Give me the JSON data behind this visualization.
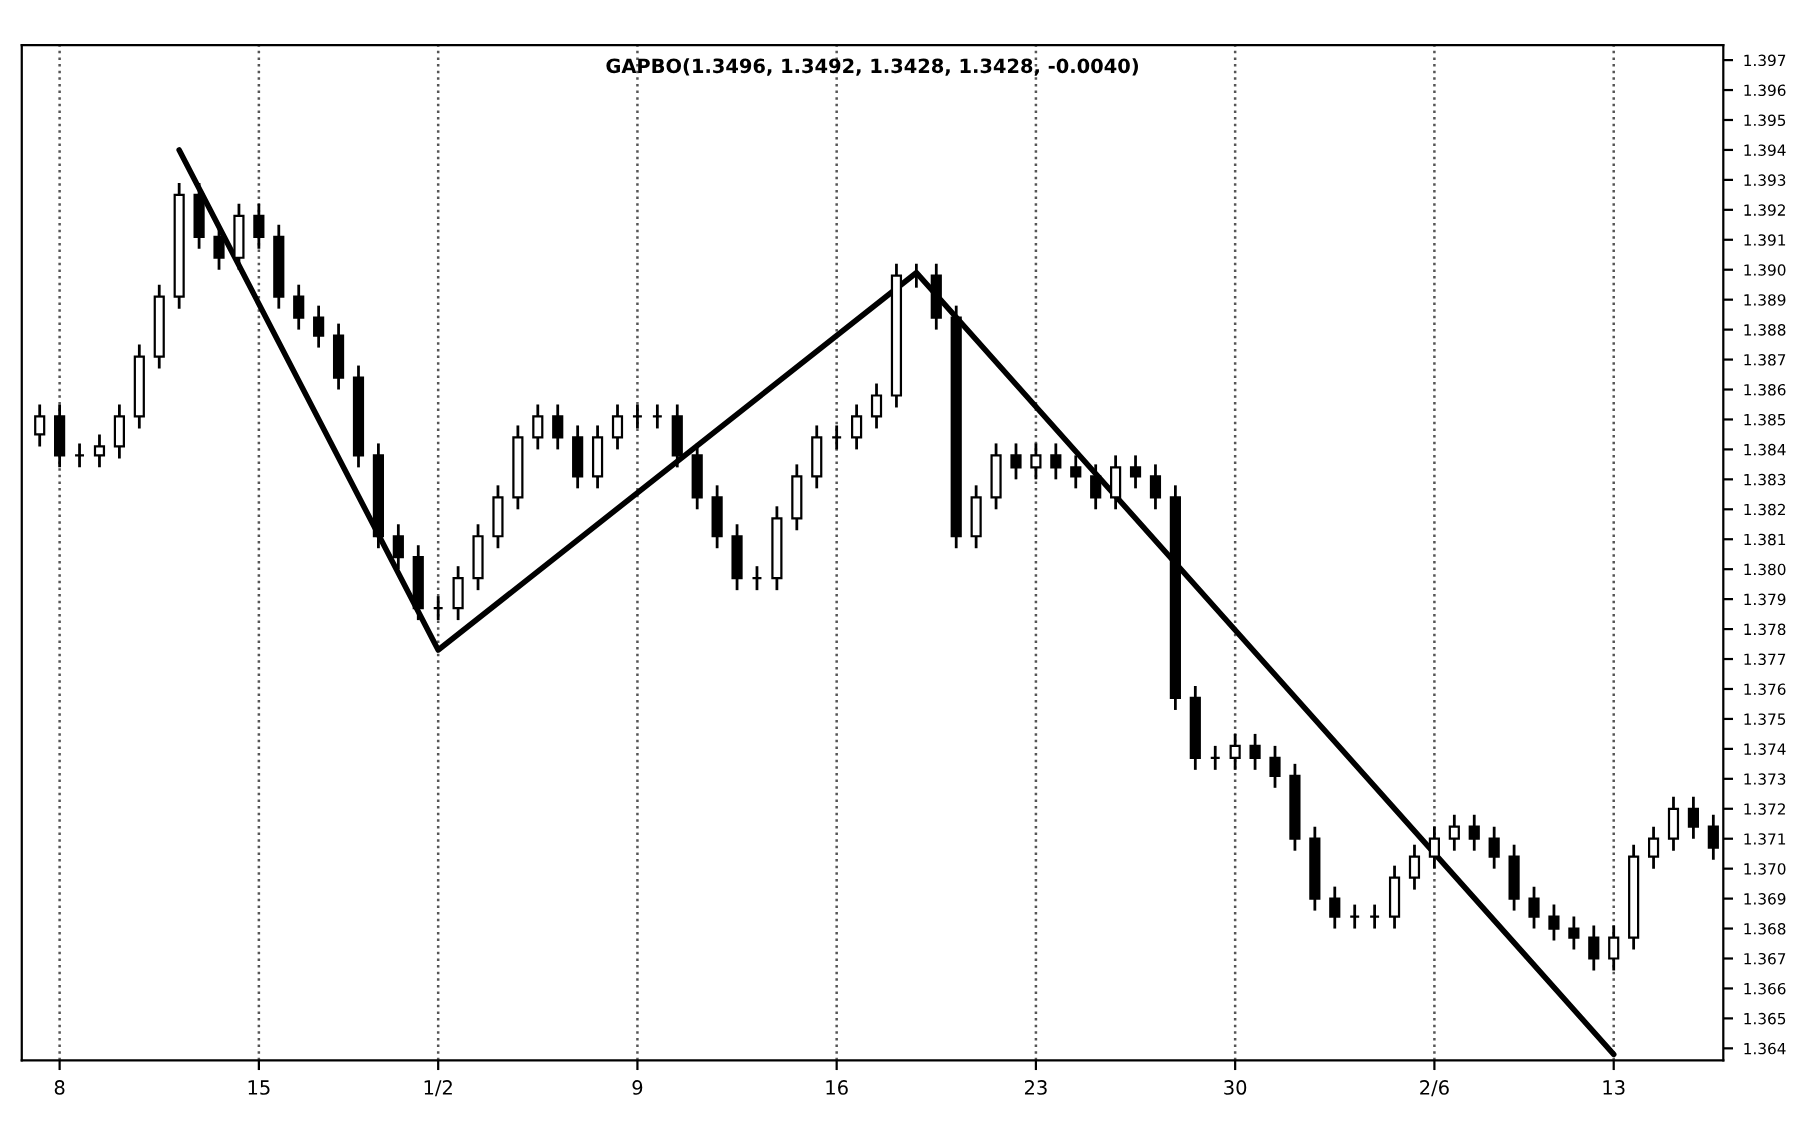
{
  "chart_data": {
    "type": "candlestick",
    "title": "GAPBO(1.3496, 1.3492, 1.3428, 1.3428, -0.0040)",
    "categories": [
      null,
      "8",
      null,
      null,
      null,
      null,
      null,
      null,
      null,
      null,
      null,
      "15",
      null,
      null,
      null,
      null,
      null,
      null,
      null,
      null,
      "1/2",
      null,
      null,
      null,
      null,
      null,
      null,
      null,
      null,
      null,
      "9",
      null,
      null,
      null,
      null,
      null,
      null,
      null,
      null,
      null,
      "16",
      null,
      null,
      null,
      null,
      null,
      null,
      null,
      null,
      null,
      "23",
      null,
      null,
      null,
      null,
      null,
      null,
      null,
      null,
      null,
      "30",
      null,
      null,
      null,
      null,
      null,
      null,
      null,
      null,
      null,
      "2/6",
      null,
      null,
      null,
      null,
      null,
      null,
      null,
      null,
      "13",
      null,
      null,
      null,
      null,
      null
    ],
    "ohlc": [
      [
        1.3845,
        1.3855,
        1.3841,
        1.3851
      ],
      [
        1.3851,
        1.3855,
        1.3834,
        1.3838
      ],
      [
        1.3838,
        1.3842,
        1.3834,
        1.3838
      ],
      [
        1.3838,
        1.3845,
        1.3834,
        1.3841
      ],
      [
        1.3841,
        1.3855,
        1.3837,
        1.3851
      ],
      [
        1.3851,
        1.3875,
        1.3847,
        1.3871
      ],
      [
        1.3871,
        1.3895,
        1.3867,
        1.3891
      ],
      [
        1.3891,
        1.3929,
        1.3887,
        1.3925
      ],
      [
        1.3925,
        1.3929,
        1.3907,
        1.3911
      ],
      [
        1.3911,
        1.3915,
        1.39,
        1.3904
      ],
      [
        1.3904,
        1.3922,
        1.39,
        1.3918
      ],
      [
        1.3918,
        1.3922,
        1.3907,
        1.3911
      ],
      [
        1.3911,
        1.3915,
        1.3887,
        1.3891
      ],
      [
        1.3891,
        1.3895,
        1.388,
        1.3884
      ],
      [
        1.3884,
        1.3888,
        1.3874,
        1.3878
      ],
      [
        1.3878,
        1.3882,
        1.386,
        1.3864
      ],
      [
        1.3864,
        1.3868,
        1.3834,
        1.3838
      ],
      [
        1.3838,
        1.3842,
        1.3807,
        1.3811
      ],
      [
        1.3811,
        1.3815,
        1.38,
        1.3804
      ],
      [
        1.3804,
        1.3808,
        1.3783,
        1.3787
      ],
      [
        1.3787,
        1.3791,
        1.3783,
        1.3787
      ],
      [
        1.3787,
        1.3801,
        1.3783,
        1.3797
      ],
      [
        1.3797,
        1.3815,
        1.3793,
        1.3811
      ],
      [
        1.3811,
        1.3828,
        1.3807,
        1.3824
      ],
      [
        1.3824,
        1.3848,
        1.382,
        1.3844
      ],
      [
        1.3844,
        1.3855,
        1.384,
        1.3851
      ],
      [
        1.3851,
        1.3855,
        1.384,
        1.3844
      ],
      [
        1.3844,
        1.3848,
        1.3827,
        1.3831
      ],
      [
        1.3831,
        1.3848,
        1.3827,
        1.3844
      ],
      [
        1.3844,
        1.3855,
        1.384,
        1.3851
      ],
      [
        1.3851,
        1.3855,
        1.3847,
        1.3851
      ],
      [
        1.3851,
        1.3855,
        1.3847,
        1.3851
      ],
      [
        1.3851,
        1.3855,
        1.3834,
        1.3838
      ],
      [
        1.3838,
        1.3842,
        1.382,
        1.3824
      ],
      [
        1.3824,
        1.3828,
        1.3807,
        1.3811
      ],
      [
        1.3811,
        1.3815,
        1.3793,
        1.3797
      ],
      [
        1.3797,
        1.3801,
        1.3793,
        1.3797
      ],
      [
        1.3797,
        1.3821,
        1.3793,
        1.3817
      ],
      [
        1.3817,
        1.3835,
        1.3813,
        1.3831
      ],
      [
        1.3831,
        1.3848,
        1.3827,
        1.3844
      ],
      [
        1.3844,
        1.3848,
        1.384,
        1.3844
      ],
      [
        1.3844,
        1.3855,
        1.384,
        1.3851
      ],
      [
        1.3851,
        1.3862,
        1.3847,
        1.3858
      ],
      [
        1.3858,
        1.3902,
        1.3854,
        1.3898
      ],
      [
        1.3898,
        1.3902,
        1.3894,
        1.3898
      ],
      [
        1.3898,
        1.3902,
        1.388,
        1.3884
      ],
      [
        1.3884,
        1.3888,
        1.3807,
        1.3811
      ],
      [
        1.3811,
        1.3828,
        1.3807,
        1.3824
      ],
      [
        1.3824,
        1.3842,
        1.382,
        1.3838
      ],
      [
        1.3838,
        1.3842,
        1.383,
        1.3834
      ],
      [
        1.3834,
        1.3842,
        1.383,
        1.3838
      ],
      [
        1.3838,
        1.3842,
        1.383,
        1.3834
      ],
      [
        1.3834,
        1.3838,
        1.3827,
        1.3831
      ],
      [
        1.3831,
        1.3835,
        1.382,
        1.3824
      ],
      [
        1.3824,
        1.3838,
        1.382,
        1.3834
      ],
      [
        1.3834,
        1.3838,
        1.3827,
        1.3831
      ],
      [
        1.3831,
        1.3835,
        1.382,
        1.3824
      ],
      [
        1.3824,
        1.3828,
        1.3753,
        1.3757
      ],
      [
        1.3757,
        1.3761,
        1.3733,
        1.3737
      ],
      [
        1.3737,
        1.3741,
        1.3733,
        1.3737
      ],
      [
        1.3737,
        1.3745,
        1.3733,
        1.3741
      ],
      [
        1.3741,
        1.3745,
        1.3733,
        1.3737
      ],
      [
        1.3737,
        1.3741,
        1.3727,
        1.3731
      ],
      [
        1.3731,
        1.3735,
        1.3706,
        1.371
      ],
      [
        1.371,
        1.3714,
        1.3686,
        1.369
      ],
      [
        1.369,
        1.3694,
        1.368,
        1.3684
      ],
      [
        1.3684,
        1.3688,
        1.368,
        1.3684
      ],
      [
        1.3684,
        1.3688,
        1.368,
        1.3684
      ],
      [
        1.3684,
        1.3701,
        1.368,
        1.3697
      ],
      [
        1.3697,
        1.3708,
        1.3693,
        1.3704
      ],
      [
        1.3704,
        1.3714,
        1.37,
        1.371
      ],
      [
        1.371,
        1.3718,
        1.3706,
        1.3714
      ],
      [
        1.3714,
        1.3718,
        1.3706,
        1.371
      ],
      [
        1.371,
        1.3714,
        1.37,
        1.3704
      ],
      [
        1.3704,
        1.3708,
        1.3686,
        1.369
      ],
      [
        1.369,
        1.3694,
        1.368,
        1.3684
      ],
      [
        1.3684,
        1.3688,
        1.3676,
        1.368
      ],
      [
        1.368,
        1.3684,
        1.3673,
        1.3677
      ],
      [
        1.3677,
        1.3681,
        1.3666,
        1.367
      ],
      [
        1.367,
        1.3681,
        1.3666,
        1.3677
      ],
      [
        1.3677,
        1.3708,
        1.3673,
        1.3704
      ],
      [
        1.3704,
        1.3714,
        1.37,
        1.371
      ],
      [
        1.371,
        1.3724,
        1.3706,
        1.372
      ],
      [
        1.372,
        1.3724,
        1.371,
        1.3714
      ],
      [
        1.3714,
        1.3718,
        1.3703,
        1.3707
      ]
    ],
    "series": [
      {
        "type": "line",
        "color": "#000000",
        "values": [
          null,
          null,
          null,
          null,
          null,
          null,
          null,
          1.394,
          null,
          null,
          null,
          null,
          null,
          null,
          null,
          null,
          null,
          null,
          null,
          null,
          1.3773,
          null,
          null,
          null,
          null,
          null,
          null,
          null,
          null,
          null,
          null,
          null,
          null,
          null,
          null,
          null,
          null,
          null,
          null,
          null,
          null,
          null,
          null,
          null,
          1.3899,
          null,
          null,
          null,
          null,
          null,
          null,
          null,
          null,
          null,
          null,
          null,
          null,
          null,
          null,
          null,
          null,
          null,
          null,
          null,
          null,
          null,
          null,
          null,
          null,
          null,
          null,
          null,
          null,
          null,
          null,
          null,
          null,
          null,
          null,
          1.3638,
          null,
          null,
          null,
          null,
          null
        ]
      }
    ],
    "color": "#000000",
    "ylim": [
      1.3636,
      1.3975
    ],
    "yticks": [
      1.364,
      1.365,
      1.366,
      1.367,
      1.368,
      1.369,
      {
        "value": 1.37,
        "label": "1.370"
      },
      1.371,
      1.372,
      1.373,
      1.374,
      1.375,
      1.376,
      1.377,
      1.378,
      1.379,
      {
        "value": 1.38,
        "label": "1.380"
      },
      1.381,
      1.382,
      1.383,
      1.384,
      1.385,
      1.386,
      1.387,
      1.388,
      1.389,
      {
        "value": 1.39,
        "label": "1.390"
      },
      1.391,
      1.392,
      1.393,
      1.394,
      1.395,
      1.396,
      1.397
    ],
    "grid": "x"
  }
}
